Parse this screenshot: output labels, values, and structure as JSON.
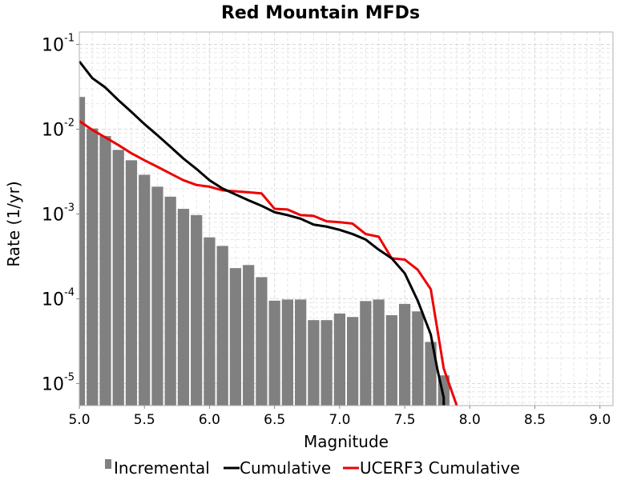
{
  "chart_data": {
    "type": "bar",
    "title": "Red Mountain MFDs",
    "xlabel": "Magnitude",
    "ylabel": "Rate (1/yr)",
    "xlim": [
      5.0,
      9.1
    ],
    "ylim": [
      5.5e-06,
      0.14
    ],
    "yscale": "log",
    "grid": true,
    "legend_position": "bottom",
    "x_ticks": [
      "5.0",
      "5.5",
      "6.0",
      "6.5",
      "7.0",
      "7.5",
      "8.0",
      "8.5",
      "9.0"
    ],
    "y_ticks": [
      {
        "base": "10",
        "exp": "-1",
        "value": 0.1
      },
      {
        "base": "10",
        "exp": "-2",
        "value": 0.01
      },
      {
        "base": "10",
        "exp": "-3",
        "value": 0.001
      },
      {
        "base": "10",
        "exp": "-4",
        "value": 0.0001
      },
      {
        "base": "10",
        "exp": "-5",
        "value": 1e-05
      }
    ],
    "series": [
      {
        "name": "Incremental",
        "kind": "bar",
        "color": "#808080",
        "x": [
          5.0,
          5.1,
          5.2,
          5.3,
          5.4,
          5.5,
          5.6,
          5.7,
          5.8,
          5.9,
          6.0,
          6.1,
          6.2,
          6.3,
          6.4,
          6.5,
          6.6,
          6.7,
          6.8,
          6.9,
          7.0,
          7.1,
          7.2,
          7.3,
          7.4,
          7.5,
          7.6,
          7.7,
          7.8
        ],
        "y": [
          0.024,
          0.0102,
          0.0083,
          0.0057,
          0.0043,
          0.0029,
          0.0021,
          0.0016,
          0.00115,
          0.00097,
          0.00053,
          0.00042,
          0.00023,
          0.00025,
          0.00018,
          9.5e-05,
          9.8e-05,
          9.8e-05,
          5.6e-05,
          5.6e-05,
          6.7e-05,
          6.1e-05,
          9.4e-05,
          9.8e-05,
          6.4e-05,
          8.7e-05,
          7.1e-05,
          3.1e-05,
          1.25e-05
        ]
      },
      {
        "name": "Cumulative",
        "kind": "line",
        "color": "#000000",
        "x": [
          5.0,
          5.1,
          5.2,
          5.3,
          5.4,
          5.5,
          5.6,
          5.7,
          5.8,
          5.9,
          6.0,
          6.1,
          6.2,
          6.3,
          6.4,
          6.5,
          6.6,
          6.7,
          6.8,
          6.9,
          7.0,
          7.1,
          7.2,
          7.3,
          7.4,
          7.5,
          7.6,
          7.7,
          7.75,
          7.8,
          7.8
        ],
        "y": [
          0.063,
          0.04,
          0.031,
          0.022,
          0.016,
          0.0115,
          0.0085,
          0.0062,
          0.0045,
          0.0034,
          0.0025,
          0.002,
          0.0017,
          0.00145,
          0.00125,
          0.00105,
          0.00097,
          0.00088,
          0.00075,
          0.00071,
          0.00065,
          0.00058,
          0.0005,
          0.00038,
          0.0003,
          0.0002,
          9.5e-05,
          3.8e-05,
          1.5e-05,
          6.8e-06,
          5.5e-06
        ]
      },
      {
        "name": "UCERF3 Cumulative",
        "kind": "line",
        "color": "#ee0000",
        "x": [
          5.0,
          5.1,
          5.2,
          5.3,
          5.4,
          5.5,
          5.6,
          5.7,
          5.8,
          5.9,
          6.0,
          6.1,
          6.2,
          6.3,
          6.4,
          6.5,
          6.6,
          6.7,
          6.8,
          6.9,
          7.0,
          7.1,
          7.2,
          7.3,
          7.4,
          7.5,
          7.6,
          7.7,
          7.8,
          7.9
        ],
        "y": [
          0.0125,
          0.0098,
          0.008,
          0.0065,
          0.0052,
          0.0043,
          0.0036,
          0.003,
          0.0025,
          0.0022,
          0.0021,
          0.0019,
          0.00185,
          0.0018,
          0.00175,
          0.00115,
          0.00113,
          0.00097,
          0.00095,
          0.00082,
          0.0008,
          0.00077,
          0.00058,
          0.00054,
          0.0003,
          0.00029,
          0.00022,
          0.00013,
          1.5e-05,
          5.5e-06
        ]
      }
    ]
  }
}
